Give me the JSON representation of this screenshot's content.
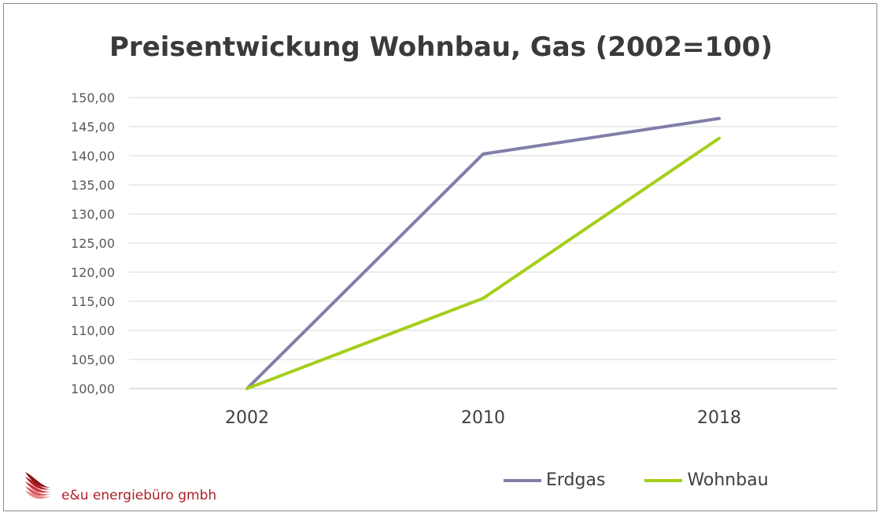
{
  "chart_data": {
    "type": "line",
    "title": "Preisentwickung Wohnbau, Gas (2002=100)",
    "categories": [
      "2002",
      "2010",
      "2018"
    ],
    "series": [
      {
        "name": "Erdgas",
        "color": "#7f7fa8",
        "values": [
          100.0,
          140.3,
          146.4
        ]
      },
      {
        "name": "Wohnbau",
        "color": "#a4cf1a",
        "values": [
          100.0,
          115.5,
          143.0
        ]
      }
    ],
    "ylim": [
      100,
      150
    ],
    "yticks": [
      "100,00",
      "105,00",
      "110,00",
      "115,00",
      "120,00",
      "125,00",
      "130,00",
      "135,00",
      "140,00",
      "145,00",
      "150,00"
    ],
    "ytick_values": [
      100,
      105,
      110,
      115,
      120,
      125,
      130,
      135,
      140,
      145,
      150
    ],
    "grid": true,
    "legend_position": "bottom-right",
    "xlabel": "",
    "ylabel": ""
  },
  "legend": {
    "erdgas_label": "Erdgas",
    "wohnbau_label": "Wohnbau"
  },
  "logo": {
    "text": "e&u energiebüro gmbh",
    "icon": "swoosh-logo-icon",
    "color": "#b01e23"
  }
}
